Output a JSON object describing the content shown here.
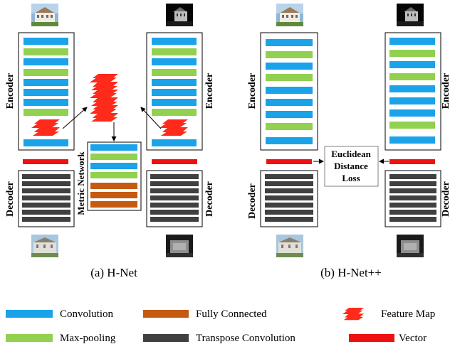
{
  "labels": {
    "encoder": "Encoder",
    "decoder": "Decoder",
    "metric_network": "Metric Network",
    "loss_line1": "Euclidean",
    "loss_line2": "Distance",
    "loss_line3": "Loss",
    "caption_a": "(a) H-Net",
    "caption_b": "(b) H-Net++"
  },
  "legend": [
    {
      "label": "Convolution",
      "color": "#1aa3e8"
    },
    {
      "label": "Fully Connected",
      "color": "#c55a11"
    },
    {
      "label": "Feature Map",
      "color": "#ff2a1a"
    },
    {
      "label": "Max-pooling",
      "color": "#92d050"
    },
    {
      "label": "Transpose Convolution",
      "color": "#404040"
    },
    {
      "label": "Vector",
      "color": "#ee1111"
    }
  ],
  "colors": {
    "conv": "#1aa3e8",
    "pool": "#92d050",
    "fc": "#c55a11",
    "tconv": "#404040",
    "vector": "#ee1111",
    "feature": "#ff2a1a"
  }
}
